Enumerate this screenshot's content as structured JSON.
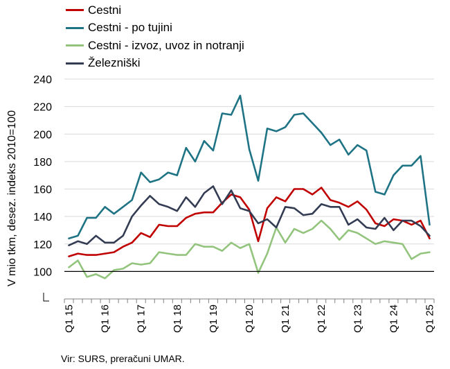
{
  "chart_data": {
    "type": "line",
    "ylabel": "V mio tkm, desez. indeks 2010=100",
    "ylim": [
      80,
      240
    ],
    "yticks": [
      80,
      100,
      120,
      140,
      160,
      180,
      200,
      220,
      240
    ],
    "x": [
      "Q1 15",
      "Q2 15",
      "Q3 15",
      "Q4 15",
      "Q1 16",
      "Q2 16",
      "Q3 16",
      "Q4 16",
      "Q1 17",
      "Q2 17",
      "Q3 17",
      "Q4 17",
      "Q1 18",
      "Q2 18",
      "Q3 18",
      "Q4 18",
      "Q1 19",
      "Q2 19",
      "Q3 19",
      "Q4 19",
      "Q1 20",
      "Q2 20",
      "Q3 20",
      "Q4 20",
      "Q1 21",
      "Q2 21",
      "Q3 21",
      "Q4 21",
      "Q1 22",
      "Q2 22",
      "Q3 22",
      "Q4 22",
      "Q1 23",
      "Q2 23",
      "Q3 23",
      "Q4 23",
      "Q1 24",
      "Q2 24",
      "Q3 24",
      "Q4 24",
      "Q1 25"
    ],
    "xtick_labels": [
      "Q1 15",
      "Q1 16",
      "Q1 17",
      "Q1 18",
      "Q1 19",
      "Q1 20",
      "Q1 21",
      "Q1 22",
      "Q1 23",
      "Q1 24",
      "Q1 25"
    ],
    "reference_line": 100,
    "grid": "horizontal",
    "legend_position": "top-left",
    "series": [
      {
        "name": "Cestni",
        "color": "#c00000",
        "values": [
          111,
          113,
          112,
          112,
          113,
          114,
          118,
          121,
          128,
          125,
          134,
          133,
          133,
          139,
          142,
          143,
          143,
          150,
          156,
          154,
          145,
          122,
          146,
          154,
          151,
          160,
          160,
          156,
          161,
          152,
          150,
          147,
          151,
          145,
          135,
          133,
          138,
          137,
          134,
          137,
          124
        ]
      },
      {
        "name": "Cestni - po tujini",
        "color": "#1e7385",
        "values": [
          124,
          126,
          139,
          139,
          147,
          142,
          147,
          152,
          172,
          165,
          167,
          172,
          170,
          190,
          180,
          195,
          188,
          215,
          214,
          228,
          189,
          166,
          204,
          202,
          205,
          214,
          215,
          208,
          201,
          192,
          196,
          185,
          192,
          188,
          158,
          156,
          170,
          177,
          177,
          184,
          134
        ]
      },
      {
        "name": "Cestni - izvoz, uvoz in notranji",
        "color": "#93c47d",
        "values": [
          103,
          108,
          96,
          98,
          95,
          101,
          102,
          106,
          105,
          106,
          114,
          113,
          112,
          112,
          120,
          118,
          118,
          115,
          121,
          117,
          120,
          99,
          113,
          132,
          121,
          131,
          128,
          131,
          137,
          131,
          123,
          130,
          128,
          124,
          120,
          122,
          121,
          120,
          109,
          113,
          114
        ]
      },
      {
        "name": "Železniški",
        "color": "#333c52",
        "values": [
          119,
          122,
          120,
          126,
          121,
          121,
          126,
          140,
          148,
          155,
          149,
          147,
          144,
          154,
          147,
          157,
          162,
          149,
          159,
          146,
          144,
          135,
          138,
          132,
          147,
          146,
          141,
          142,
          149,
          147,
          147,
          134,
          138,
          132,
          131,
          139,
          130,
          137,
          137,
          133,
          126
        ]
      }
    ]
  },
  "source_note": "Vir: SURS, preračuni UMAR."
}
